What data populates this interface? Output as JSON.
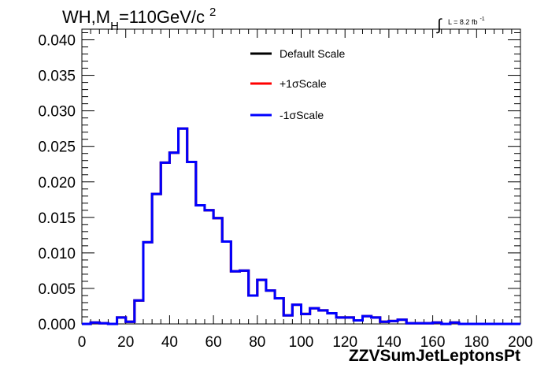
{
  "chart_data": {
    "type": "line",
    "title_parts": {
      "main": "WH,M",
      "sub": "H",
      "rest": "=110GeV/c",
      "sup": "2"
    },
    "lumi": {
      "prefix": "L = 8.2 fb",
      "sup": "-1"
    },
    "xlabel": "ZZVSumJetLeptonsPt",
    "ylabel": "",
    "xlim": [
      0,
      200
    ],
    "ylim": [
      0,
      0.0415
    ],
    "x_ticks": [
      0,
      20,
      40,
      60,
      80,
      100,
      120,
      140,
      160,
      180,
      200
    ],
    "x_tick_labels": [
      "0",
      "20",
      "40",
      "60",
      "80",
      "100",
      "120",
      "140",
      "160",
      "180",
      "200"
    ],
    "y_ticks": [
      0,
      0.005,
      0.01,
      0.015,
      0.02,
      0.025,
      0.03,
      0.035,
      0.04
    ],
    "y_tick_labels": [
      "0.000",
      "0.005",
      "0.010",
      "0.015",
      "0.020",
      "0.025",
      "0.030",
      "0.035",
      "0.040"
    ],
    "bin_edges_start": 0,
    "bin_width": 4,
    "bin_values": [
      0.0,
      0.0002,
      0.0001,
      0.0,
      0.0009,
      0.0003,
      0.0033,
      0.0115,
      0.0183,
      0.0227,
      0.0241,
      0.0275,
      0.0228,
      0.0167,
      0.016,
      0.0149,
      0.0116,
      0.0074,
      0.0075,
      0.004,
      0.0062,
      0.0047,
      0.0036,
      0.0012,
      0.0027,
      0.0014,
      0.0022,
      0.0019,
      0.0015,
      0.0009,
      0.0009,
      0.0005,
      0.0011,
      0.0009,
      0.0003,
      0.0004,
      0.0006,
      0.0001,
      0.0001,
      0.0001,
      0.0002,
      0.0,
      0.0002,
      0.0,
      0.0,
      0.0,
      0.0,
      0.0,
      0.0,
      0.0
    ],
    "series": [
      {
        "name": "Default Scale",
        "color": "#000000"
      },
      {
        "name": "+1σScale",
        "color": "#ff0000"
      },
      {
        "name": "-1σScale",
        "color": "#0000ff"
      }
    ],
    "legend_position": "top-center",
    "grid": false
  }
}
